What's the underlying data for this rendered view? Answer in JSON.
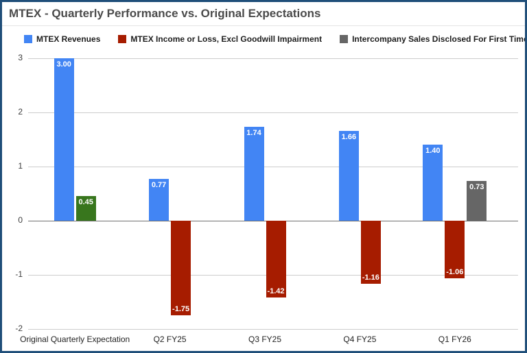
{
  "frame": {
    "border_color": "#1f4e79",
    "background_color": "#ffffff"
  },
  "chart_data": {
    "type": "bar",
    "title": "MTEX - Quarterly Performance vs. Original Expectations",
    "legend_position": "top",
    "grid": true,
    "categories": [
      "Original Quarterly Expectation",
      "Q2 FY25",
      "Q3 FY25",
      "Q4 FY25",
      "Q1 FY26"
    ],
    "series": [
      {
        "name": "MTEX Revenues",
        "color": "#4285f4",
        "values": [
          3.0,
          0.77,
          1.74,
          1.66,
          1.4
        ],
        "labels": [
          "3.00",
          "0.77",
          "1.74",
          "1.66",
          "1.40"
        ]
      },
      {
        "name": "MTEX Income or Loss, Excl Goodwill Impairment",
        "color": "#a61c00",
        "values": [
          0.45,
          -1.75,
          -1.42,
          -1.16,
          -1.06
        ],
        "labels": [
          "0.45",
          "-1.75",
          "-1.42",
          "-1.16",
          "-1.06"
        ],
        "point_colors": [
          "#38761d",
          null,
          null,
          null,
          null
        ]
      },
      {
        "name": "Intercompany Sales Disclosed For First Time - ?????",
        "color": "#666666",
        "values": [
          null,
          null,
          null,
          null,
          0.73
        ],
        "labels": [
          null,
          null,
          null,
          null,
          "0.73"
        ]
      }
    ],
    "ylim": [
      -2,
      3
    ],
    "yticks": [
      3,
      2,
      1,
      0,
      -1,
      -2
    ],
    "colors": {
      "gridline": "#cccccc",
      "zero_line": "#6e6e6e",
      "title_text": "#4a4a4a",
      "axis_text": "#3c3c3c",
      "bar_label_text": "#ffffff",
      "positive_income_point": "#38761d"
    }
  }
}
